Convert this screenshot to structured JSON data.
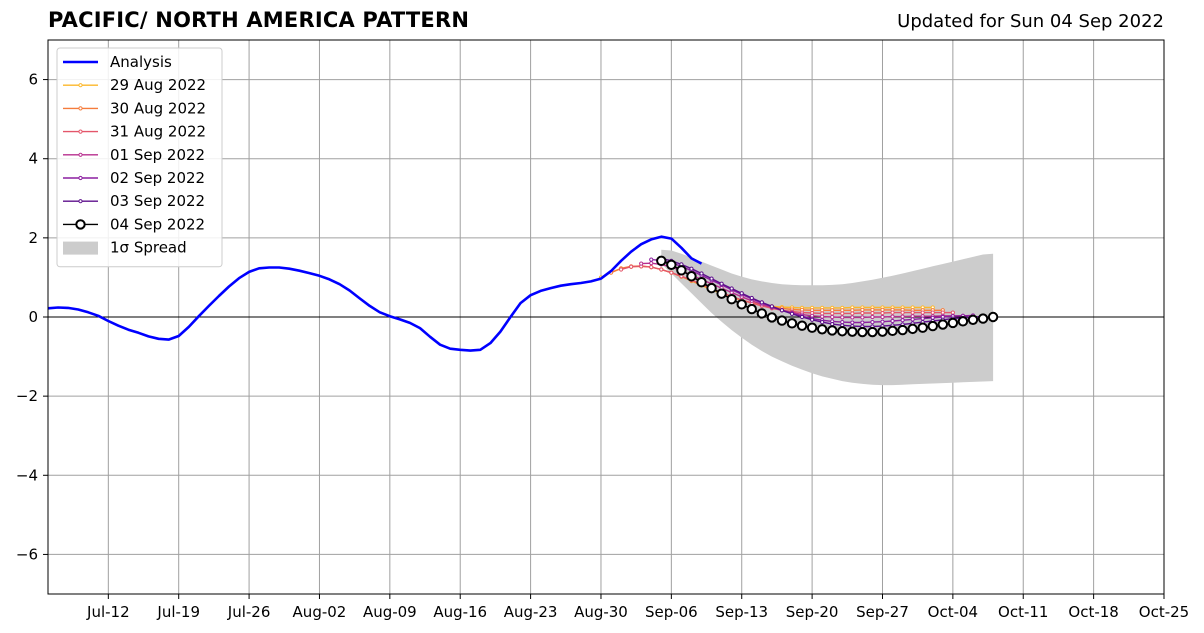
{
  "title": "PACIFIC/ NORTH AMERICA PATTERN",
  "updated": "Updated for Sun 04 Sep 2022",
  "chart_data": {
    "type": "line",
    "title": "PACIFIC/ NORTH AMERICA PATTERN",
    "subtitle": "Updated for Sun 04 Sep 2022",
    "xlabel": "",
    "ylabel": "",
    "xlim": [
      "2022-07-06",
      "2022-10-25"
    ],
    "ylim": [
      -7,
      7
    ],
    "grid": true,
    "legend_position": "top-left",
    "x_ticks": [
      "Jul-12",
      "Jul-19",
      "Jul-26",
      "Aug-02",
      "Aug-09",
      "Aug-16",
      "Aug-23",
      "Aug-30",
      "Sep-06",
      "Sep-13",
      "Sep-20",
      "Sep-27",
      "Oct-04",
      "Oct-11",
      "Oct-18",
      "Oct-25"
    ],
    "y_ticks": [
      6,
      4,
      2,
      0,
      -2,
      -4,
      -6
    ],
    "y_tick_labels": [
      "6",
      "4",
      "2",
      "0",
      "−2",
      "−4",
      "−6"
    ],
    "analysis": {
      "name": "Analysis",
      "color": "#0000ff",
      "x_start": "2022-07-06",
      "values": [
        0.22,
        0.24,
        0.23,
        0.19,
        0.12,
        0.03,
        -0.1,
        -0.22,
        -0.32,
        -0.4,
        -0.49,
        -0.55,
        -0.57,
        -0.48,
        -0.25,
        0.02,
        0.28,
        0.53,
        0.77,
        0.98,
        1.14,
        1.23,
        1.25,
        1.25,
        1.22,
        1.17,
        1.11,
        1.04,
        0.95,
        0.83,
        0.67,
        0.47,
        0.28,
        0.12,
        0.02,
        -0.06,
        -0.15,
        -0.28,
        -0.5,
        -0.7,
        -0.8,
        -0.83,
        -0.85,
        -0.83,
        -0.66,
        -0.37,
        0.0,
        0.35,
        0.55,
        0.66,
        0.73,
        0.79,
        0.83,
        0.86,
        0.9,
        0.97,
        1.16,
        1.42,
        1.65,
        1.84,
        1.96,
        2.03,
        1.98,
        1.75,
        1.48,
        1.35
      ]
    },
    "forecasts": [
      {
        "name": "29 Aug 2022",
        "color": "#fcb72a",
        "x_start": "2022-08-30",
        "values": [
          1.0,
          1.13,
          1.22,
          1.27,
          1.28,
          1.26,
          1.2,
          1.12,
          1.02,
          0.91,
          0.8,
          0.69,
          0.59,
          0.5,
          0.42,
          0.36,
          0.31,
          0.27,
          0.25,
          0.24,
          0.23,
          0.23,
          0.23,
          0.23,
          0.23,
          0.24,
          0.24,
          0.24,
          0.24,
          0.24,
          0.24,
          0.24,
          0.24,
          0.24
        ]
      },
      {
        "name": "30 Aug 2022",
        "color": "#f57c3c",
        "x_start": "2022-08-31",
        "values": [
          1.12,
          1.23,
          1.28,
          1.29,
          1.26,
          1.2,
          1.12,
          1.02,
          0.92,
          0.81,
          0.71,
          0.61,
          0.51,
          0.43,
          0.36,
          0.3,
          0.25,
          0.22,
          0.19,
          0.18,
          0.17,
          0.17,
          0.17,
          0.17,
          0.17,
          0.18,
          0.18,
          0.18,
          0.18,
          0.18,
          0.17,
          0.17,
          0.17,
          0.17
        ]
      },
      {
        "name": "31 Aug 2022",
        "color": "#e4566a",
        "x_start": "2022-09-01",
        "values": [
          1.2,
          1.27,
          1.28,
          1.26,
          1.2,
          1.12,
          1.03,
          0.93,
          0.83,
          0.73,
          0.62,
          0.52,
          0.43,
          0.35,
          0.28,
          0.22,
          0.17,
          0.14,
          0.11,
          0.1,
          0.09,
          0.09,
          0.09,
          0.09,
          0.1,
          0.1,
          0.1,
          0.11,
          0.11,
          0.11,
          0.11,
          0.11,
          0.11,
          0.11
        ]
      },
      {
        "name": "01 Sep 2022",
        "color": "#b72e8e",
        "x_start": "2022-09-03",
        "values": [
          1.35,
          1.36,
          1.33,
          1.26,
          1.17,
          1.06,
          0.95,
          0.84,
          0.73,
          0.62,
          0.51,
          0.41,
          0.32,
          0.24,
          0.17,
          0.11,
          0.06,
          0.03,
          0.01,
          0.0,
          -0.01,
          -0.01,
          -0.01,
          0.0,
          0.0,
          0.01,
          0.01,
          0.02,
          0.02,
          0.02,
          0.03,
          0.03,
          0.03
        ]
      },
      {
        "name": "02 Sep 2022",
        "color": "#8c1fa0",
        "x_start": "2022-09-04",
        "values": [
          1.45,
          1.43,
          1.37,
          1.28,
          1.17,
          1.05,
          0.93,
          0.81,
          0.69,
          0.57,
          0.46,
          0.36,
          0.26,
          0.17,
          0.09,
          0.02,
          -0.04,
          -0.08,
          -0.11,
          -0.13,
          -0.14,
          -0.14,
          -0.13,
          -0.12,
          -0.1,
          -0.08,
          -0.06,
          -0.04,
          -0.02,
          0.0,
          0.02,
          0.03,
          0.04
        ]
      },
      {
        "name": "03 Sep 2022",
        "color": "#5d0f8c",
        "x_start": "2022-09-05",
        "values": [
          1.48,
          1.42,
          1.33,
          1.22,
          1.1,
          0.97,
          0.84,
          0.72,
          0.6,
          0.48,
          0.37,
          0.27,
          0.17,
          0.08,
          0.0,
          -0.07,
          -0.13,
          -0.18,
          -0.21,
          -0.23,
          -0.24,
          -0.24,
          -0.23,
          -0.21,
          -0.19,
          -0.16,
          -0.13,
          -0.1,
          -0.07,
          -0.04,
          -0.02,
          0.0,
          0.01
        ]
      },
      {
        "name": "04 Sep 2022",
        "color": "#000000",
        "x_start": "2022-09-05",
        "values": [
          1.42,
          1.32,
          1.18,
          1.03,
          0.88,
          0.73,
          0.59,
          0.45,
          0.32,
          0.2,
          0.09,
          -0.01,
          -0.09,
          -0.16,
          -0.22,
          -0.27,
          -0.31,
          -0.34,
          -0.36,
          -0.37,
          -0.38,
          -0.38,
          -0.37,
          -0.35,
          -0.33,
          -0.3,
          -0.27,
          -0.23,
          -0.19,
          -0.15,
          -0.11,
          -0.07,
          -0.04,
          0.0
        ]
      }
    ],
    "spread": {
      "name": "1σ Spread",
      "color": "#cccccc",
      "x_start": "2022-09-05",
      "upper": [
        1.7,
        1.68,
        1.6,
        1.5,
        1.4,
        1.3,
        1.2,
        1.1,
        1.02,
        0.95,
        0.9,
        0.86,
        0.83,
        0.81,
        0.8,
        0.8,
        0.8,
        0.81,
        0.83,
        0.86,
        0.9,
        0.94,
        0.99,
        1.04,
        1.1,
        1.16,
        1.22,
        1.28,
        1.34,
        1.4,
        1.46,
        1.52,
        1.58,
        1.6
      ],
      "lower": [
        1.35,
        1.1,
        0.85,
        0.6,
        0.35,
        0.1,
        -0.12,
        -0.33,
        -0.52,
        -0.7,
        -0.86,
        -1.0,
        -1.12,
        -1.23,
        -1.33,
        -1.42,
        -1.5,
        -1.56,
        -1.62,
        -1.66,
        -1.69,
        -1.71,
        -1.72,
        -1.72,
        -1.71,
        -1.7,
        -1.69,
        -1.68,
        -1.67,
        -1.66,
        -1.65,
        -1.64,
        -1.63,
        -1.62
      ]
    }
  }
}
